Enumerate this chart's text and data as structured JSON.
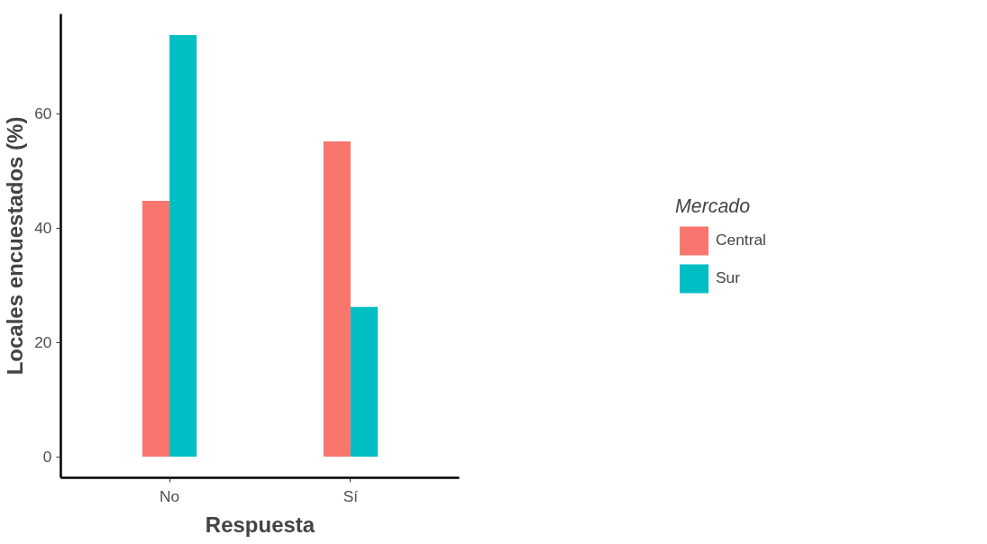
{
  "chart_data": {
    "type": "bar",
    "xlabel": "Respuesta",
    "ylabel": "Locales encuestados (%)",
    "legend_title": "Mercado",
    "categories": [
      "No",
      "Sí"
    ],
    "series": [
      {
        "name": "Central",
        "color": "#f8766d",
        "values": [
          44.8,
          55.2
        ]
      },
      {
        "name": "Sur",
        "color": "#00bfc4",
        "values": [
          73.8,
          26.2
        ]
      }
    ],
    "ylim": [
      -3.7,
      77.5
    ],
    "yticks": [
      0,
      20,
      40,
      60
    ],
    "grid": false,
    "legend": "right"
  }
}
